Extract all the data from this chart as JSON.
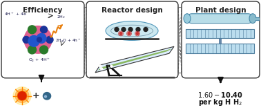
{
  "panel1_title": "Efficiency",
  "panel2_title": "Reactor design",
  "panel3_title": "Plant design",
  "cost_line1": "$1.60 - $10.40",
  "cost_line2": "per kg H",
  "bg_color": "#ffffff",
  "light_blue": "#cce8f0",
  "green_panel": "#8ab860",
  "tube_color": "#b8dde8",
  "grid_color": "#4a7a9b",
  "dashed_color": "#555555",
  "panel_ec": "#333333",
  "pink": "#e06090",
  "dark_blue": "#1a3399",
  "mid_blue": "#2255cc",
  "dark_green": "#2a7a2a",
  "orange_arrow": "#e88010",
  "sun_inner": "#dd2200",
  "sun_outer": "#ff8800",
  "sun_glow": "#ffcc00",
  "water_color": "#336688"
}
